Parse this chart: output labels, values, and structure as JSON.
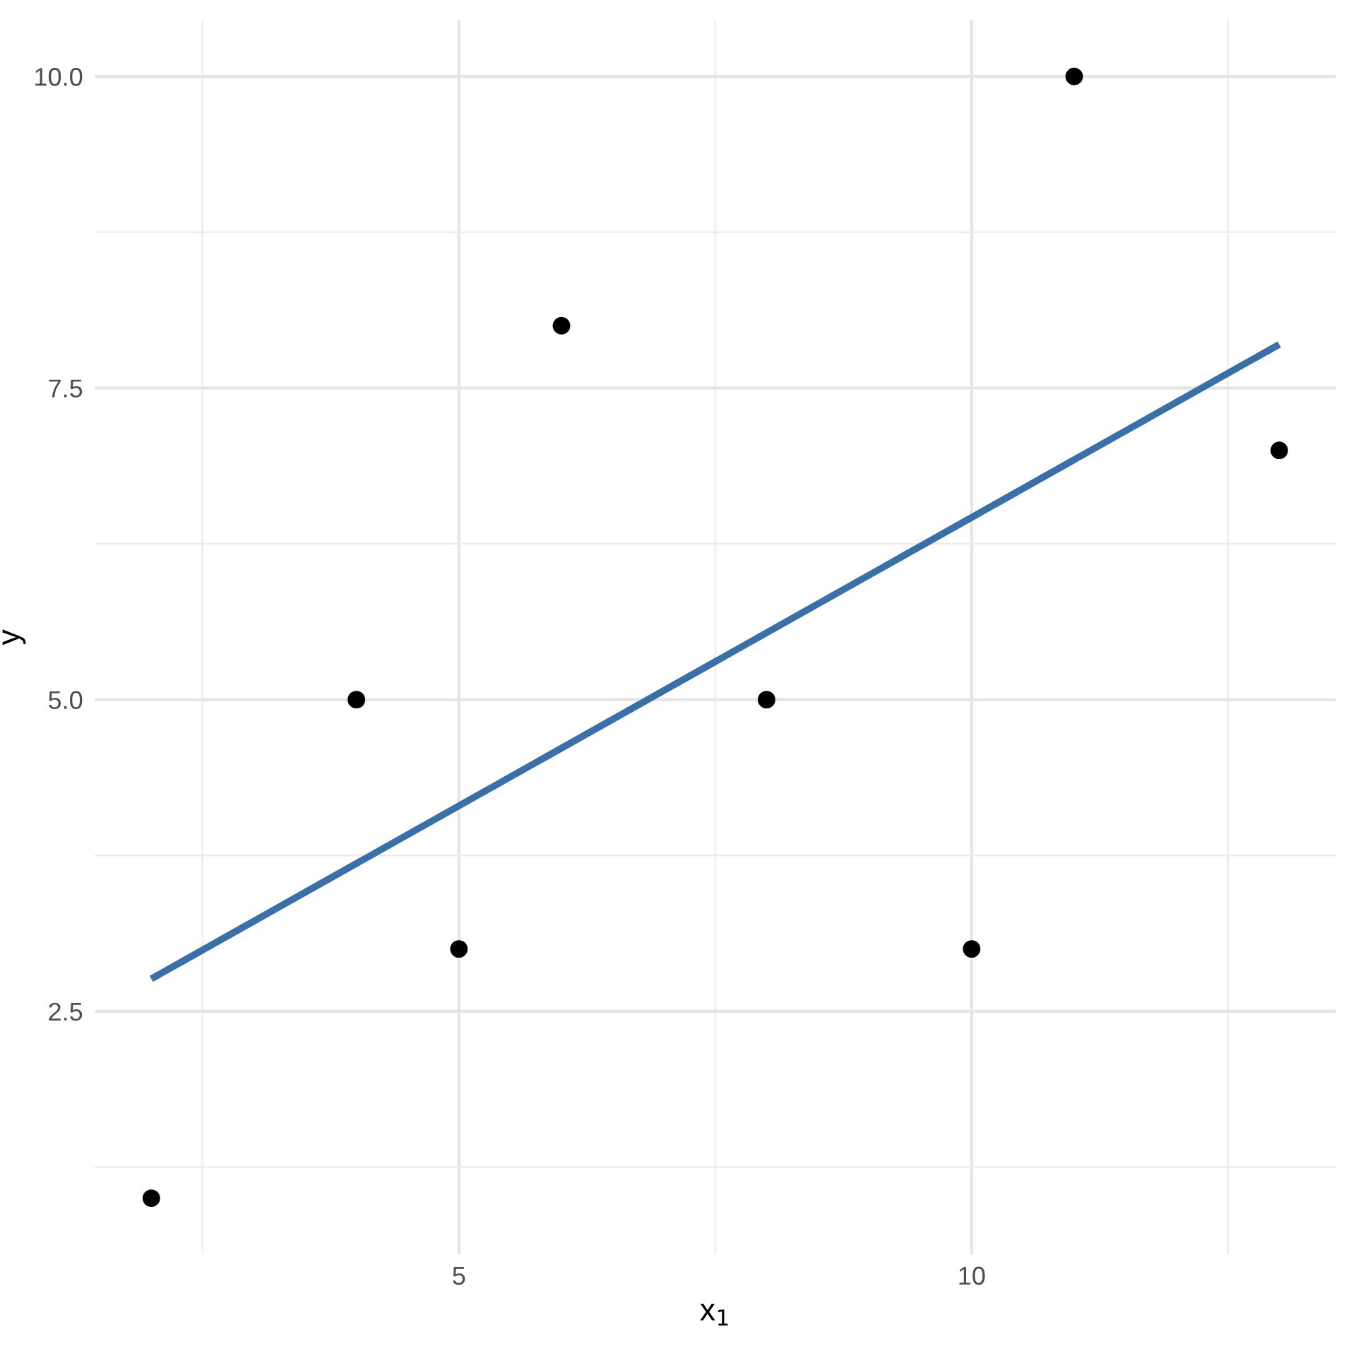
{
  "chart_data": {
    "type": "scatter",
    "xlabel": "x$_{1}$",
    "ylabel": "y",
    "xlim": [
      1.45,
      13.55
    ],
    "ylim": [
      0.55,
      10.45
    ],
    "xticks": [
      {
        "value": 2.5,
        "label": null
      },
      5,
      {
        "value": 7.5,
        "label": null
      },
      10,
      {
        "value": 12.5,
        "label": null
      }
    ],
    "yticks": [
      {
        "value": 1.25,
        "label": null
      },
      2.5,
      {
        "value": 3.75,
        "label": null
      },
      {
        "value": 5,
        "label": "5.0"
      },
      {
        "value": 6.25,
        "label": null
      },
      7.5,
      {
        "value": 8.75,
        "label": null
      },
      {
        "value": 10,
        "label": "10.0"
      }
    ],
    "grid": true,
    "marker": "circle",
    "series": [
      {
        "color": "#000000",
        "x": [
          2,
          4,
          5,
          6,
          8,
          10,
          11,
          13
        ],
        "values": [
          1,
          5,
          3,
          8,
          5,
          3,
          10,
          7
        ]
      },
      {
        "type": "line",
        "color": "#3a6fa8",
        "x": [
          2,
          13
        ],
        "values": [
          2.76,
          7.85
        ],
        "marker": "none"
      }
    ]
  }
}
